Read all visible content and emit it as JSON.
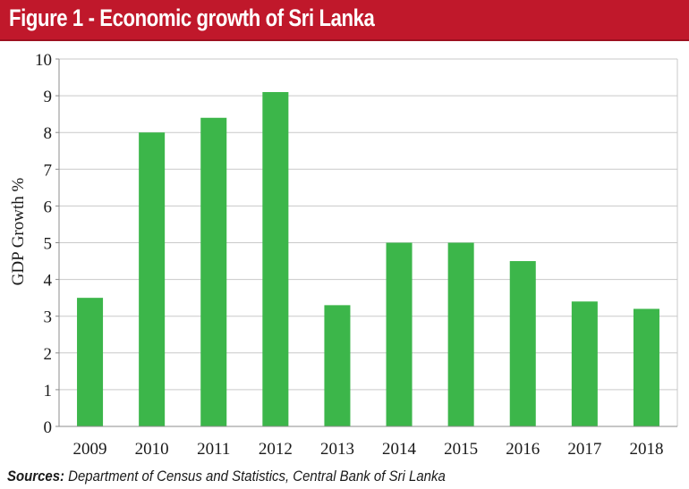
{
  "header": {
    "title": "Figure 1 - Economic growth of Sri Lanka"
  },
  "chart_data": {
    "type": "bar",
    "categories": [
      "2009",
      "2010",
      "2011",
      "2012",
      "2013",
      "2014",
      "2015",
      "2016",
      "2017",
      "2018"
    ],
    "values": [
      3.5,
      8.0,
      8.4,
      9.1,
      3.3,
      5.0,
      5.0,
      4.5,
      3.4,
      3.2
    ],
    "xlabel": "",
    "ylabel": "GDP Growth %",
    "ylim": [
      0,
      10
    ],
    "yticks": [
      "0",
      "1",
      "2",
      "3",
      "4",
      "5",
      "6",
      "7",
      "8",
      "9",
      "10"
    ],
    "grid": true,
    "bar_color": "#3cb64a",
    "grid_color": "#c9c9c9"
  },
  "footer": {
    "sources_label": "Sources:",
    "sources_text": "Department of Census and Statistics, Central Bank of Sri Lanka"
  },
  "colors": {
    "banner": "#c0182b"
  }
}
